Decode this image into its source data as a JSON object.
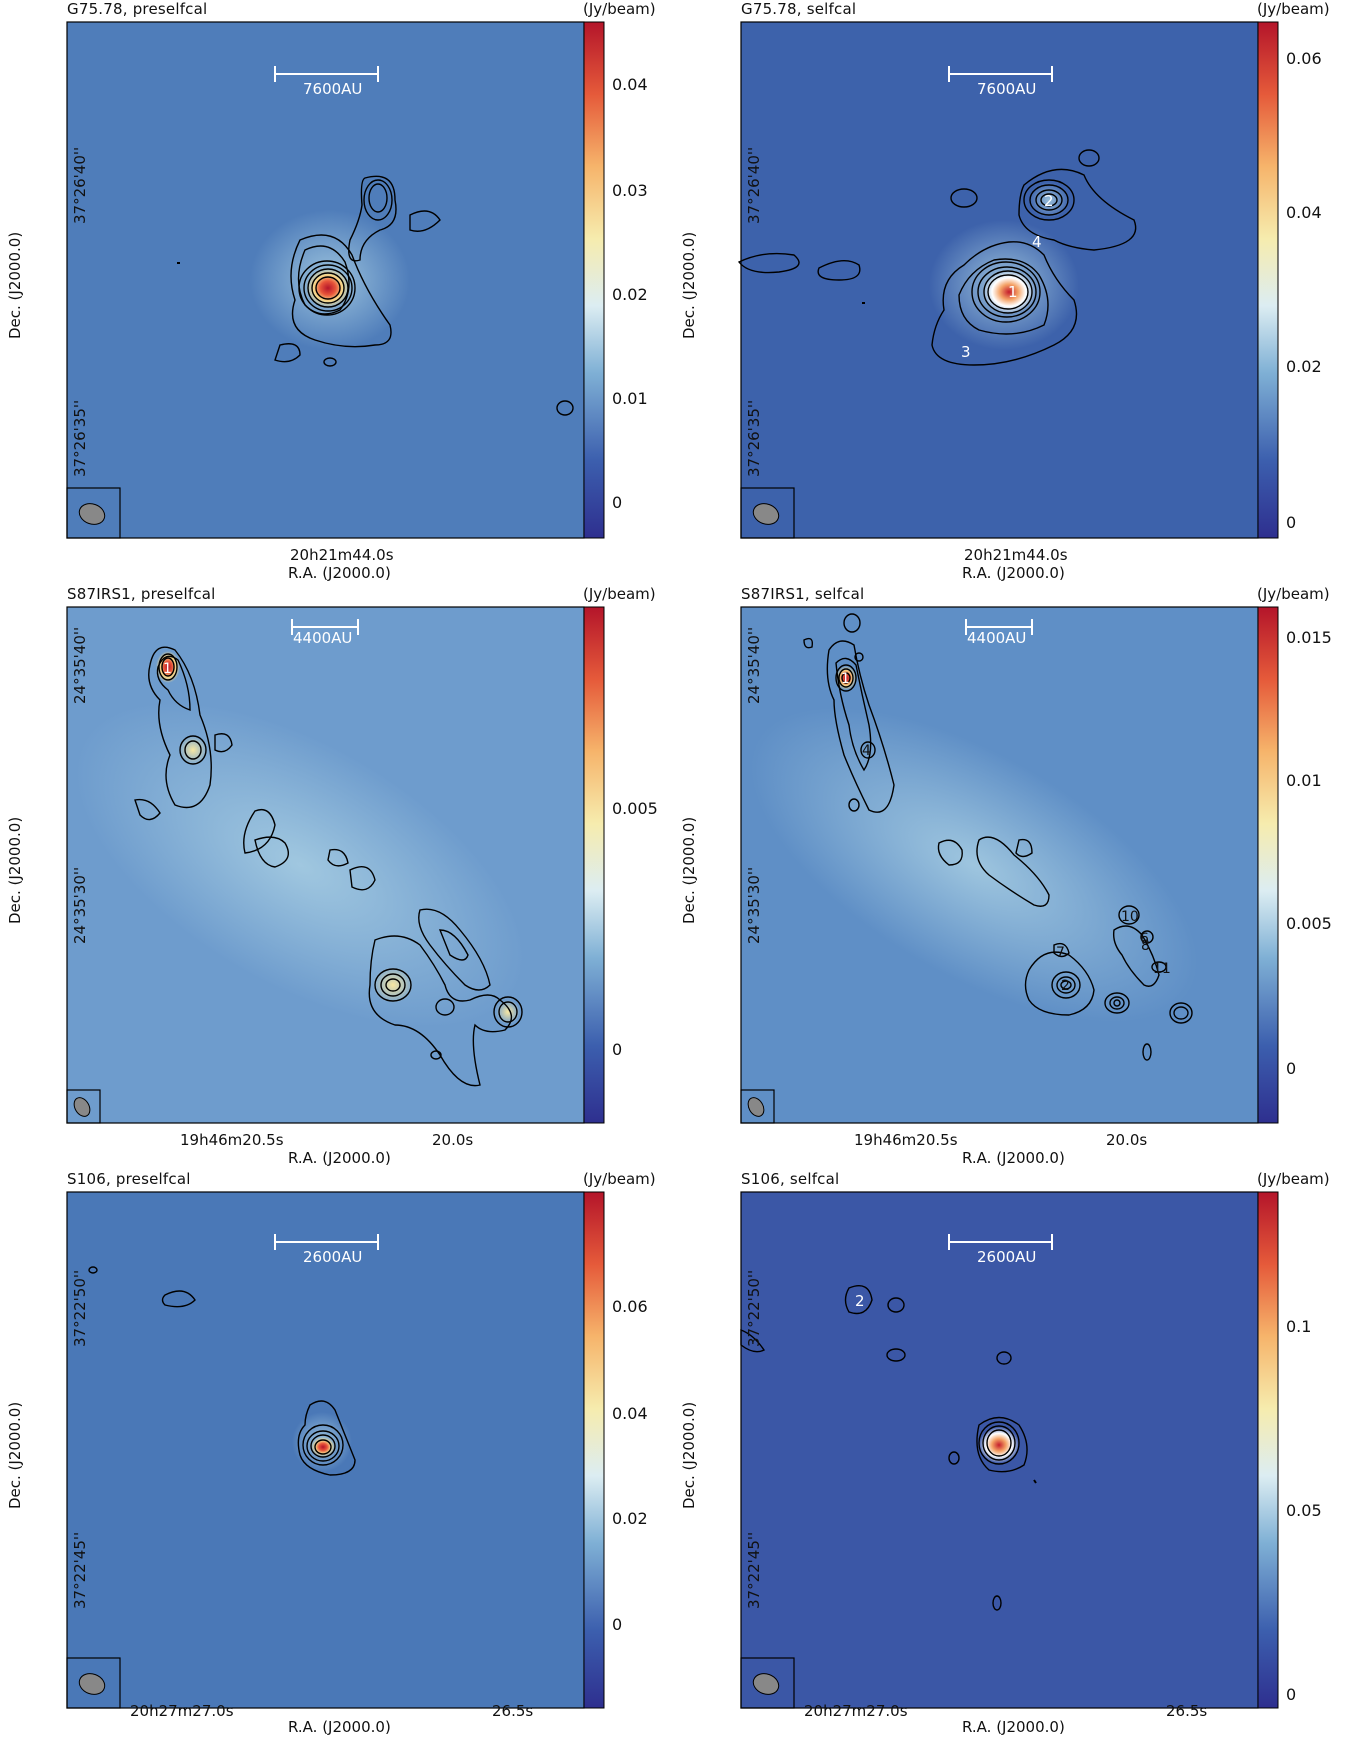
{
  "panels": [
    {
      "id": "p1",
      "title": "G75.78, preselfcal",
      "unit": "(Jy/beam)",
      "scalebar": "7600AU",
      "ra_tick": "20h21m44.0s",
      "ra_label": "R.A. (J2000.0)",
      "dec_label": "Dec. (J2000.0)",
      "dec_ticks": [
        "37°26'40''",
        "37°26'35''"
      ],
      "cbar_ticks": [
        "0.04",
        "0.03",
        "0.02",
        "0.01",
        "0"
      ],
      "labels": []
    },
    {
      "id": "p2",
      "title": "G75.78, selfcal",
      "unit": "(Jy/beam)",
      "scalebar": "7600AU",
      "ra_tick": "20h21m44.0s",
      "ra_label": "R.A. (J2000.0)",
      "dec_label": "Dec. (J2000.0)",
      "dec_ticks": [
        "37°26'40''",
        "37°26'35''"
      ],
      "cbar_ticks": [
        "0.06",
        "0.04",
        "0.02",
        "0"
      ],
      "labels": [
        "1",
        "2",
        "3",
        "4"
      ]
    },
    {
      "id": "p3",
      "title": "S87IRS1, preselfcal",
      "unit": "(Jy/beam)",
      "scalebar": "4400AU",
      "ra_ticks": [
        "19h46m20.5s",
        "20.0s"
      ],
      "ra_label": "R.A. (J2000.0)",
      "dec_label": "Dec. (J2000.0)",
      "dec_ticks": [
        "24°35'40''",
        "24°35'30''"
      ],
      "cbar_ticks": [
        "0.005",
        "0"
      ],
      "labels": [
        "1"
      ]
    },
    {
      "id": "p4",
      "title": "S87IRS1, selfcal",
      "unit": "(Jy/beam)",
      "scalebar": "4400AU",
      "ra_ticks": [
        "19h46m20.5s",
        "20.0s"
      ],
      "ra_label": "R.A. (J2000.0)",
      "dec_label": "Dec. (J2000.0)",
      "dec_ticks": [
        "24°35'40''",
        "24°35'30''"
      ],
      "cbar_ticks": [
        "0.015",
        "0.01",
        "0.005",
        "0"
      ],
      "labels": [
        "1",
        "2",
        "4",
        "6",
        "7",
        "8",
        "10",
        "11"
      ]
    },
    {
      "id": "p5",
      "title": "S106, preselfcal",
      "unit": "(Jy/beam)",
      "scalebar": "2600AU",
      "ra_ticks": [
        "20h27m27.0s",
        "26.5s"
      ],
      "ra_label": "R.A. (J2000.0)",
      "dec_label": "Dec. (J2000.0)",
      "dec_ticks": [
        "37°22'50''",
        "37°22'45''"
      ],
      "cbar_ticks": [
        "0.06",
        "0.04",
        "0.02",
        "0"
      ],
      "labels": []
    },
    {
      "id": "p6",
      "title": "S106, selfcal",
      "unit": "(Jy/beam)",
      "scalebar": "2600AU",
      "ra_ticks": [
        "20h27m27.0s",
        "26.5s"
      ],
      "ra_label": "R.A. (J2000.0)",
      "dec_label": "Dec. (J2000.0)",
      "dec_ticks": [
        "37°22'50''",
        "37°22'45''"
      ],
      "cbar_ticks": [
        "0.1",
        "0.05",
        "0"
      ],
      "labels": [
        "2"
      ]
    }
  ],
  "colors": {
    "map_bg": "#3f6aae",
    "contour": "#000000",
    "scalebar": "#ffffff"
  }
}
